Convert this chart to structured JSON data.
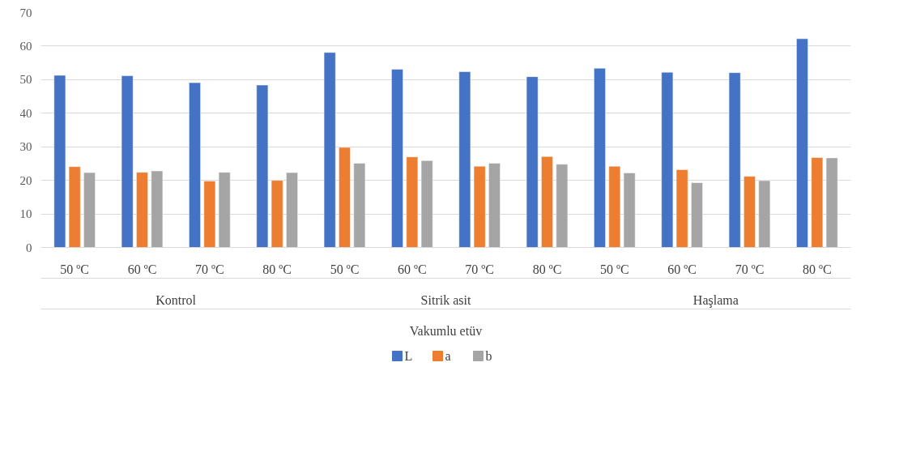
{
  "chart_data": {
    "type": "bar",
    "categories": [
      "50 ºC",
      "60 ºC",
      "70 ºC",
      "80 ºC",
      "50 ºC",
      "60 ºC",
      "70 ºC",
      "80 ºC",
      "50 ºC",
      "60 ºC",
      "70 ºC",
      "80 ºC"
    ],
    "series": [
      {
        "name": "L",
        "color": "#4472c4",
        "values": [
          51.3,
          51.2,
          49.1,
          48.4,
          58.1,
          53.1,
          52.4,
          50.9,
          53.4,
          52.2,
          52.1,
          62.2
        ]
      },
      {
        "name": "a",
        "color": "#ed7d31",
        "values": [
          24.1,
          22.4,
          19.8,
          20.0,
          29.8,
          27.0,
          24.2,
          27.1,
          24.2,
          23.2,
          21.2,
          26.8
        ]
      },
      {
        "name": "b",
        "color": "#a5a5a5",
        "values": [
          22.3,
          22.8,
          22.4,
          22.3,
          25.1,
          25.9,
          25.1,
          24.8,
          22.2,
          19.3,
          19.9,
          26.7
        ]
      }
    ],
    "annotations": [
      "Kontrol",
      "Sitrik asit",
      "Haşlama",
      "Vakumlu etüv"
    ],
    "ylim": [
      0,
      70
    ],
    "yticks": [
      0,
      10,
      20,
      30,
      40,
      50,
      60,
      70
    ],
    "grid": "y",
    "legend": "bottom"
  }
}
